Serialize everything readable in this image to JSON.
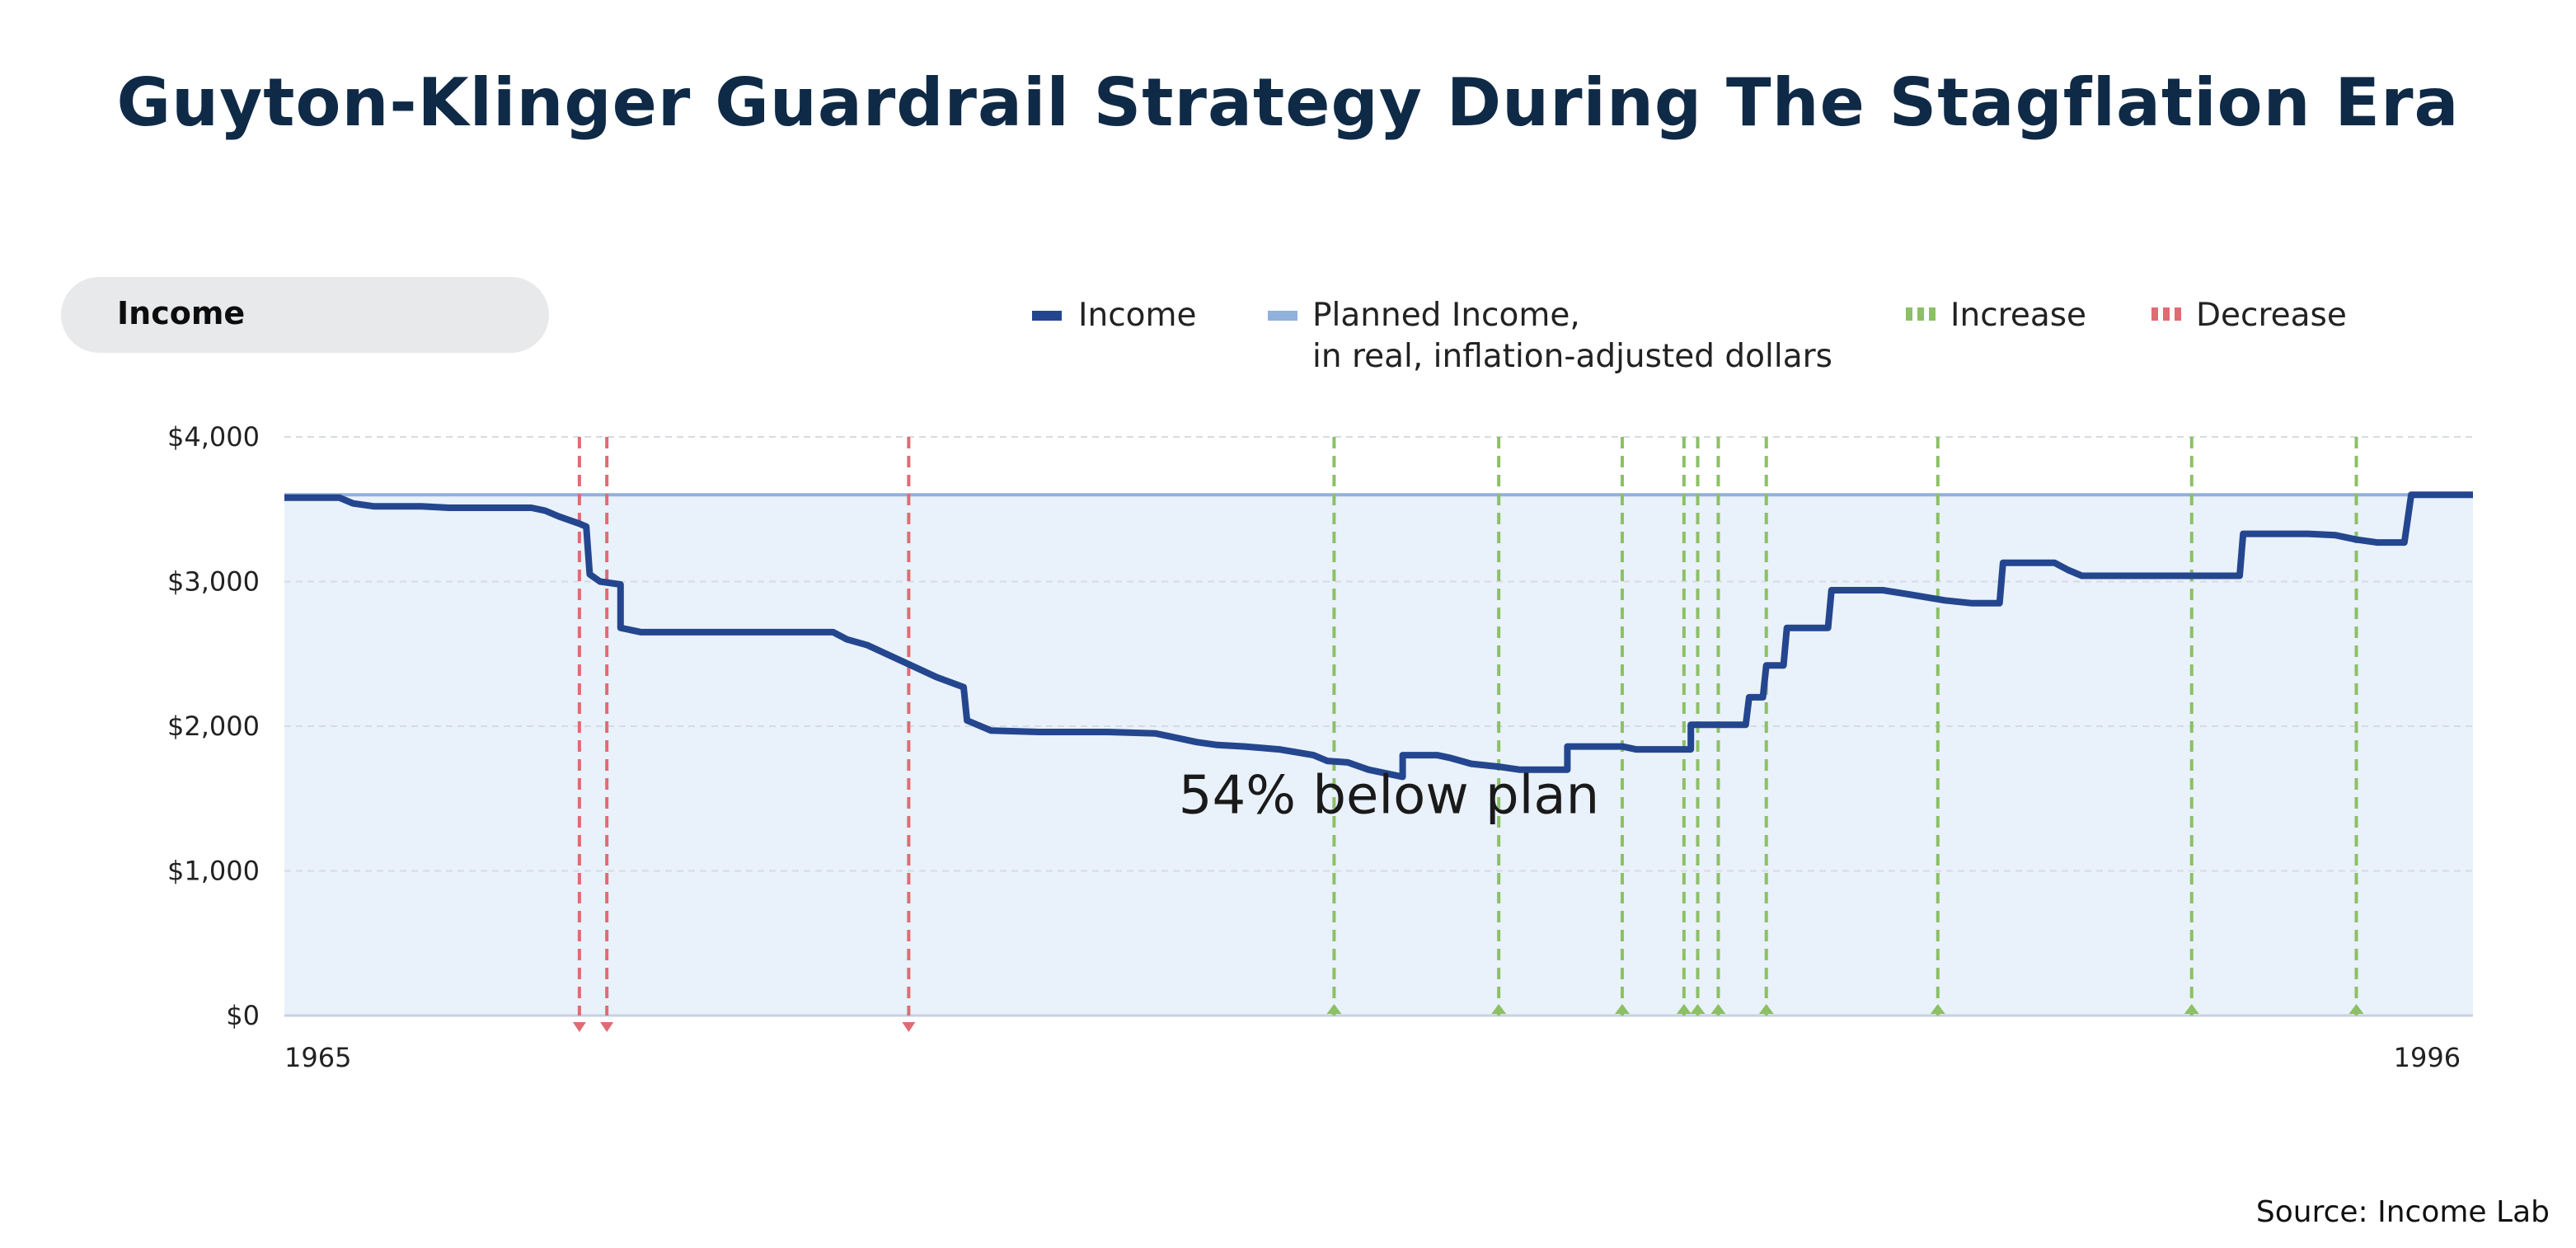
{
  "title": "Guyton-Klinger Guardrail Strategy During The Stagflation Era",
  "panel_label": "Income",
  "legend": {
    "income": "Income",
    "planned_line1": "Planned Income,",
    "planned_line2": "in real, inflation-adjusted dollars",
    "increase": "Increase",
    "decrease": "Decrease"
  },
  "source": "Source: Income Lab",
  "colors": {
    "income": "#24468f",
    "planned": "#8fb1dc",
    "area": "#e9f1fa",
    "increase": "#8cc065",
    "decrease": "#e06b73",
    "grid": "#d6dbe3"
  },
  "chart_data": {
    "type": "line",
    "title": "Guyton-Klinger Guardrail Strategy During The Stagflation Era",
    "xlim": [
      1965,
      1996
    ],
    "ylim": [
      0,
      4000
    ],
    "x_tick_labels": [
      "1965",
      "1996"
    ],
    "y_tick_values": [
      0,
      1000,
      2000,
      3000,
      4000
    ],
    "y_tick_labels": [
      "$0",
      "$1,000",
      "$2,000",
      "$3,000",
      "$4,000"
    ],
    "grid": true,
    "legend_position": "top",
    "series": [
      {
        "name": "Income",
        "points": [
          [
            1965.0,
            3580
          ],
          [
            1965.8,
            3580
          ],
          [
            1966.0,
            3540
          ],
          [
            1966.3,
            3520
          ],
          [
            1967.0,
            3520
          ],
          [
            1967.4,
            3510
          ],
          [
            1968.6,
            3510
          ],
          [
            1968.8,
            3490
          ],
          [
            1969.0,
            3450
          ],
          [
            1969.3,
            3400
          ],
          [
            1969.4,
            3380
          ],
          [
            1969.45,
            3050
          ],
          [
            1969.6,
            3000
          ],
          [
            1969.9,
            2980
          ],
          [
            1969.9,
            2680
          ],
          [
            1970.2,
            2650
          ],
          [
            1973.0,
            2650
          ],
          [
            1973.2,
            2600
          ],
          [
            1973.5,
            2560
          ],
          [
            1974.0,
            2450
          ],
          [
            1974.5,
            2340
          ],
          [
            1974.9,
            2270
          ],
          [
            1974.95,
            2040
          ],
          [
            1975.3,
            1970
          ],
          [
            1976.0,
            1960
          ],
          [
            1977.0,
            1960
          ],
          [
            1977.7,
            1950
          ],
          [
            1978.0,
            1920
          ],
          [
            1978.3,
            1890
          ],
          [
            1978.6,
            1870
          ],
          [
            1979.0,
            1860
          ],
          [
            1979.5,
            1840
          ],
          [
            1980.0,
            1800
          ],
          [
            1980.2,
            1760
          ],
          [
            1980.5,
            1750
          ],
          [
            1980.8,
            1700
          ],
          [
            1981.0,
            1680
          ],
          [
            1981.2,
            1660
          ],
          [
            1981.3,
            1650
          ],
          [
            1981.3,
            1800
          ],
          [
            1981.8,
            1800
          ],
          [
            1982.0,
            1780
          ],
          [
            1982.3,
            1740
          ],
          [
            1982.7,
            1720
          ],
          [
            1983.0,
            1700
          ],
          [
            1983.7,
            1700
          ],
          [
            1983.7,
            1860
          ],
          [
            1984.5,
            1860
          ],
          [
            1984.7,
            1840
          ],
          [
            1985.5,
            1840
          ],
          [
            1985.5,
            2010
          ],
          [
            1986.3,
            2010
          ],
          [
            1986.35,
            2200
          ],
          [
            1986.55,
            2200
          ],
          [
            1986.6,
            2420
          ],
          [
            1986.85,
            2420
          ],
          [
            1986.9,
            2680
          ],
          [
            1987.5,
            2680
          ],
          [
            1987.55,
            2940
          ],
          [
            1988.3,
            2940
          ],
          [
            1988.7,
            2910
          ],
          [
            1989.2,
            2870
          ],
          [
            1989.6,
            2850
          ],
          [
            1990.0,
            2850
          ],
          [
            1990.05,
            3130
          ],
          [
            1990.8,
            3130
          ],
          [
            1991.0,
            3080
          ],
          [
            1991.2,
            3040
          ],
          [
            1992.0,
            3040
          ],
          [
            1993.5,
            3040
          ],
          [
            1993.55,
            3330
          ],
          [
            1994.5,
            3330
          ],
          [
            1994.9,
            3320
          ],
          [
            1995.2,
            3290
          ],
          [
            1995.5,
            3270
          ],
          [
            1995.9,
            3270
          ],
          [
            1996.0,
            3600
          ],
          [
            1996.9,
            3600
          ]
        ]
      },
      {
        "name": "Planned Income",
        "value": 3600
      }
    ],
    "decrease_years": [
      1969.3,
      1969.7,
      1974.1
    ],
    "increase_years": [
      1980.3,
      1982.7,
      1984.5,
      1985.4,
      1985.6,
      1985.9,
      1986.6,
      1989.1,
      1992.8,
      1995.2
    ],
    "annotations": [
      {
        "text": "54% below plan",
        "x": 1981.1,
        "y": 1400
      }
    ]
  }
}
